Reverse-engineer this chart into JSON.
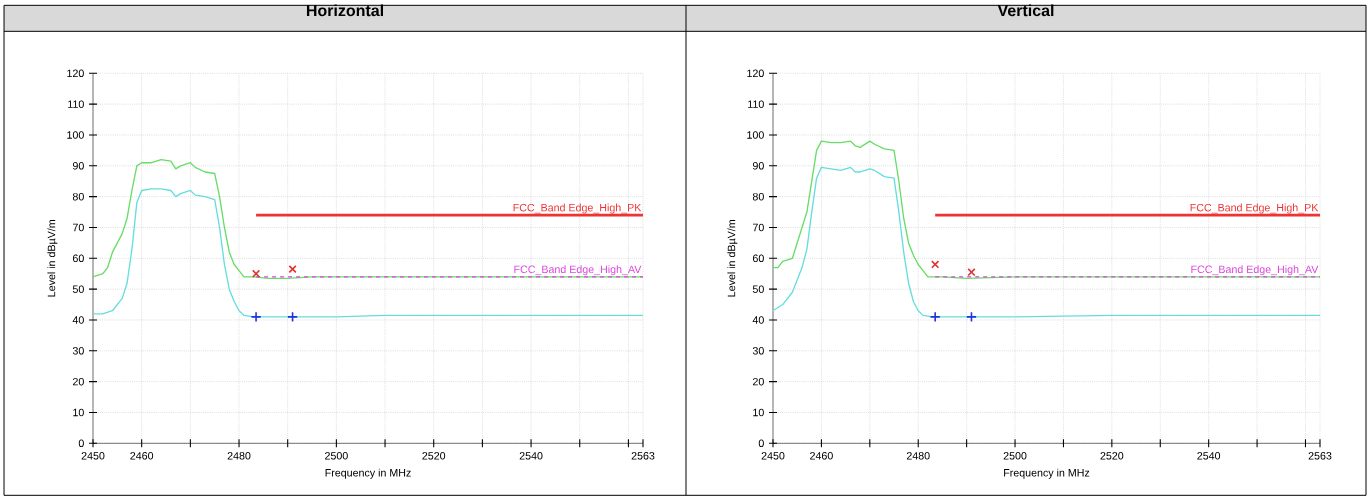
{
  "chart_data": [
    {
      "type": "line",
      "title": "Horizontal",
      "xlabel": "Frequency in MHz",
      "ylabel": "Level in dBµV/m",
      "xlim": [
        2450,
        2563
      ],
      "ylim": [
        0,
        120
      ],
      "xticks": [
        2450,
        2460,
        {
          "value": 2470,
          "label": null
        },
        2480,
        {
          "value": 2490,
          "label": null
        },
        2500,
        {
          "value": 2510,
          "label": null
        },
        2520,
        {
          "value": 2530,
          "label": null
        },
        2540,
        {
          "value": 2550,
          "label": null
        },
        {
          "value": 2560,
          "label": null
        },
        2563
      ],
      "yticks": [
        0,
        10,
        20,
        30,
        40,
        50,
        60,
        70,
        80,
        90,
        100,
        110,
        120
      ],
      "grid": true,
      "series": [
        {
          "color": "#66dd66",
          "x": [
            2450,
            2451,
            2452,
            2453,
            2454,
            2455,
            2456,
            2457,
            2458,
            2459,
            2460,
            2462,
            2464,
            2466,
            2467,
            2468,
            2470,
            2471,
            2473,
            2475,
            2476,
            2477,
            2478,
            2479,
            2480,
            2481,
            2483,
            2486,
            2490,
            2495,
            2500,
            2505,
            2510,
            2520,
            2530,
            2540,
            2550,
            2563
          ],
          "values": [
            54,
            54.5,
            55,
            57,
            62,
            65,
            68,
            73,
            82,
            90,
            91,
            91,
            92,
            91.5,
            89,
            90,
            91,
            89.5,
            88,
            87.5,
            80,
            70,
            62,
            58,
            56,
            54,
            54,
            53.5,
            53.5,
            54,
            54,
            54,
            54,
            54,
            54,
            54,
            54,
            54
          ]
        },
        {
          "color": "#66dddd",
          "x": [
            2450,
            2452,
            2454,
            2456,
            2457,
            2458,
            2459,
            2460,
            2462,
            2464,
            2466,
            2467,
            2468,
            2470,
            2471,
            2473,
            2475,
            2476,
            2477,
            2478,
            2479,
            2480,
            2481,
            2483,
            2490,
            2500,
            2510,
            2520,
            2563
          ],
          "values": [
            42,
            42,
            43,
            47,
            52,
            63,
            78,
            82,
            82.5,
            82.5,
            82,
            80,
            81,
            82,
            80.5,
            80,
            79,
            70,
            58,
            50,
            46,
            43,
            41.5,
            41,
            41,
            41,
            41.5,
            41.5,
            41.5
          ]
        },
        {
          "type": "line",
          "name": "FCC_Band Edge_High_PK",
          "color": "#ee3333",
          "x": [
            2483.5,
            2563
          ],
          "values": [
            74,
            74
          ]
        },
        {
          "type": "line",
          "name": "FCC_Band Edge_High_AV",
          "color": "#dd44dd",
          "line_style": "dashed",
          "x": [
            2483.5,
            2563
          ],
          "values": [
            54,
            54
          ]
        },
        {
          "type": "scatter",
          "marker": "cross",
          "color": "#dd3333",
          "x": [
            2483.5,
            2491
          ],
          "values": [
            55,
            56.5
          ]
        },
        {
          "type": "scatter",
          "marker": "plus",
          "color": "#2233dd",
          "x": [
            2483.5,
            2491
          ],
          "values": [
            41,
            41
          ]
        }
      ]
    },
    {
      "type": "line",
      "title": "Vertical",
      "xlabel": "Frequency in MHz",
      "ylabel": "Level in dBµV/m",
      "xlim": [
        2450,
        2563
      ],
      "ylim": [
        0,
        120
      ],
      "xticks": [
        2450,
        2460,
        {
          "value": 2470,
          "label": null
        },
        2480,
        {
          "value": 2490,
          "label": null
        },
        2500,
        {
          "value": 2510,
          "label": null
        },
        2520,
        {
          "value": 2530,
          "label": null
        },
        2540,
        {
          "value": 2550,
          "label": null
        },
        {
          "value": 2560,
          "label": null
        },
        2563
      ],
      "yticks": [
        0,
        10,
        20,
        30,
        40,
        50,
        60,
        70,
        80,
        90,
        100,
        110,
        120
      ],
      "grid": true,
      "series": [
        {
          "color": "#66dd66",
          "x": [
            2450,
            2451,
            2452,
            2454,
            2455,
            2456,
            2457,
            2458,
            2459,
            2460,
            2462,
            2464,
            2466,
            2467,
            2468,
            2470,
            2471,
            2473,
            2475,
            2476,
            2477,
            2478,
            2479,
            2480,
            2481,
            2482,
            2485,
            2490,
            2500,
            2520,
            2540,
            2563
          ],
          "values": [
            57,
            57,
            59,
            60,
            65,
            70,
            75,
            85,
            95,
            98,
            97.5,
            97.5,
            98,
            96.5,
            96,
            98,
            97,
            95.5,
            95,
            85,
            73,
            65,
            61,
            58,
            56,
            54,
            54,
            53.5,
            54,
            54,
            54,
            54
          ]
        },
        {
          "color": "#66dddd",
          "x": [
            2450,
            2452,
            2454,
            2456,
            2457,
            2458,
            2459,
            2460,
            2462,
            2464,
            2466,
            2467,
            2468,
            2470,
            2471,
            2473,
            2475,
            2476,
            2477,
            2478,
            2479,
            2480,
            2481,
            2483,
            2500,
            2520,
            2563
          ],
          "values": [
            43,
            45,
            49,
            57,
            63,
            75,
            86,
            89.5,
            89,
            88.5,
            89.5,
            88,
            88,
            89,
            88.5,
            86.5,
            86,
            75,
            62,
            52,
            46,
            43,
            41.5,
            41,
            41,
            41.5,
            41.5
          ]
        },
        {
          "type": "line",
          "name": "FCC_Band Edge_High_PK",
          "color": "#ee3333",
          "x": [
            2483.5,
            2563
          ],
          "values": [
            74,
            74
          ]
        },
        {
          "type": "line",
          "name": "FCC_Band Edge_High_AV",
          "color": "#dd44dd",
          "line_style": "dashed",
          "x": [
            2483.5,
            2563
          ],
          "values": [
            54,
            54
          ]
        },
        {
          "type": "scatter",
          "marker": "cross",
          "color": "#dd3333",
          "x": [
            2483.5,
            2491
          ],
          "values": [
            58,
            55.5
          ]
        },
        {
          "type": "scatter",
          "marker": "plus",
          "color": "#2233dd",
          "x": [
            2483.5,
            2491
          ],
          "values": [
            41,
            41
          ]
        }
      ]
    }
  ]
}
